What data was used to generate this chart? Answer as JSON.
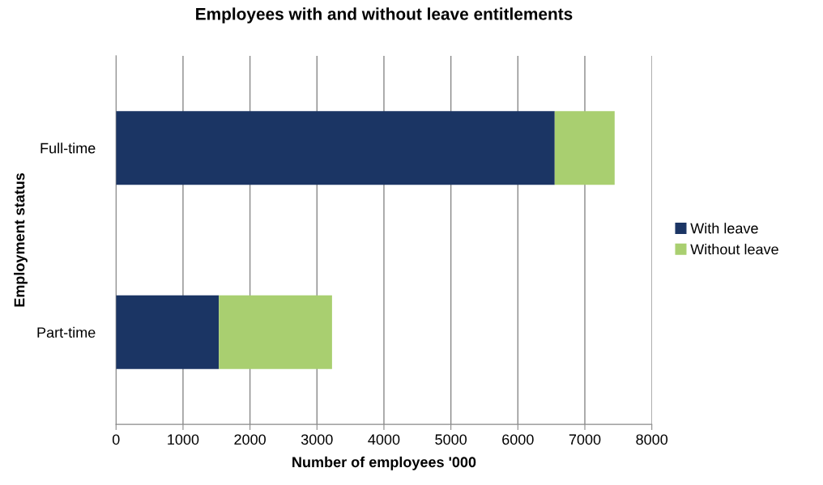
{
  "chart_data": {
    "type": "bar",
    "orientation": "horizontal",
    "stacked": true,
    "title": "Employees with and without leave entitlements",
    "xlabel": "Number of employees '000",
    "ylabel": "Employment status",
    "categories": [
      "Full-time",
      "Part-time"
    ],
    "series": [
      {
        "name": "With leave",
        "color": "#1b3564",
        "values": [
          6550,
          1535
        ]
      },
      {
        "name": "Without leave",
        "color": "#a9cf70",
        "values": [
          895,
          1690
        ]
      }
    ],
    "xlim": [
      0,
      8000
    ],
    "xticks": [
      0,
      1000,
      2000,
      3000,
      4000,
      5000,
      6000,
      7000,
      8000
    ],
    "grid": "x",
    "legend": "right"
  }
}
